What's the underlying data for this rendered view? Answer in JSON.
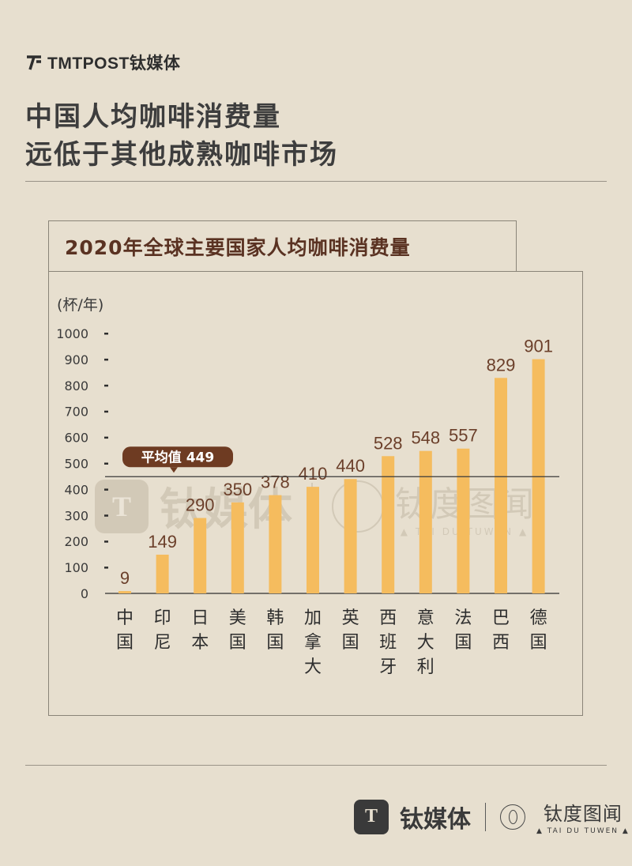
{
  "header": {
    "brand_text": "TMTPOST钛媒体",
    "title_line1": "中国人均咖啡消费量",
    "title_line2": "远低于其他成熟咖啡市场"
  },
  "footer": {
    "brand_cn": "钛媒体",
    "tdt_cn": "钛度图闻",
    "tdt_en": "▲ TAI DU TUWEN ▲",
    "logo_glyph": "T"
  },
  "watermark": {
    "brand_cn": "钛媒体",
    "tdt_cn": "钛度图闻",
    "tdt_en": "▲ TAI DU TUWEN ▲",
    "logo_glyph": "T"
  },
  "colors": {
    "background": "#e7dfcf",
    "bar": "#f5bc5e",
    "value_label": "#6b3f2a",
    "chart_title": "#5a3222",
    "avg_badge": "#6e3b22"
  },
  "chart_data": {
    "type": "bar",
    "title": "2020年全球主要国家人均咖啡消费量",
    "ylabel": "(杯/年)",
    "ylim": [
      0,
      1000
    ],
    "yticks": [
      "0",
      "100",
      "200",
      "300",
      "400",
      "500",
      "600",
      "700",
      "800",
      "900",
      "1000"
    ],
    "categories": [
      "中国",
      "印尼",
      "日本",
      "美国",
      "韩国",
      "加拿大",
      "英国",
      "西班牙",
      "意大利",
      "法国",
      "巴西",
      "德国"
    ],
    "values": [
      9,
      149,
      290,
      350,
      378,
      410,
      440,
      528,
      548,
      557,
      829,
      901
    ],
    "average": {
      "label": "平均值 449",
      "value": 449
    },
    "grid": false
  }
}
